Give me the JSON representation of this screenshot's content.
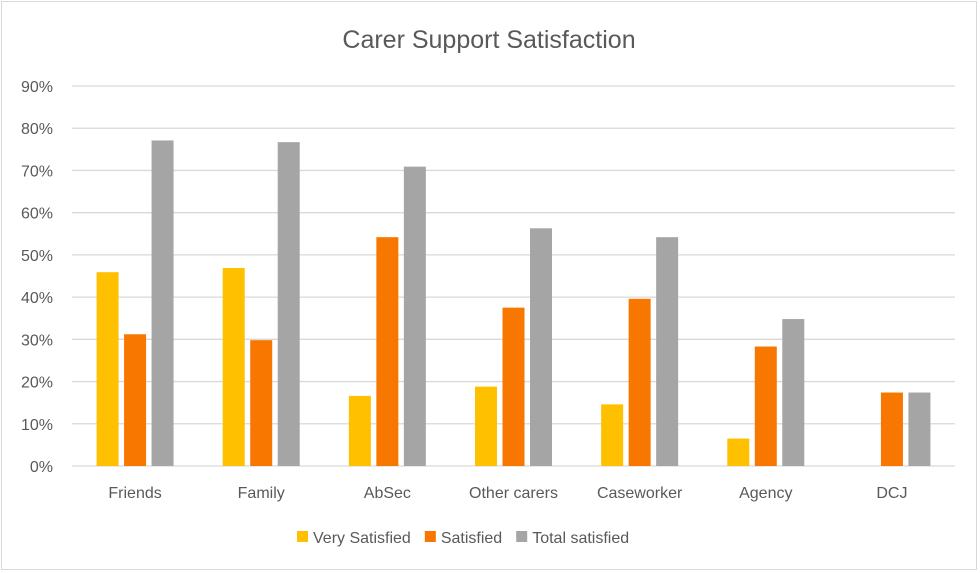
{
  "chart_data": {
    "type": "bar",
    "title": "Carer Support Satisfaction",
    "xlabel": "",
    "ylabel": "",
    "categories": [
      "Friends",
      "Family",
      "AbSec",
      "Other carers",
      "Caseworker",
      "Agency",
      "DCJ"
    ],
    "series": [
      {
        "name": "Very Satisfied",
        "color": "#FFC000",
        "values": [
          45.9,
          46.9,
          16.6,
          18.8,
          14.6,
          6.5,
          0
        ]
      },
      {
        "name": "Satisfied",
        "color": "#F77700",
        "values": [
          31.2,
          29.8,
          54.2,
          37.5,
          39.6,
          28.3,
          17.4
        ]
      },
      {
        "name": "Total satisfied",
        "color": "#A5A5A5",
        "values": [
          77.1,
          76.7,
          70.9,
          56.3,
          54.2,
          34.8,
          17.4
        ]
      }
    ],
    "ylim": [
      0,
      90
    ],
    "yticks": [
      "0%",
      "10%",
      "20%",
      "30%",
      "40%",
      "50%",
      "60%",
      "70%",
      "80%",
      "90%"
    ],
    "grid": true,
    "legend": "bottom"
  }
}
